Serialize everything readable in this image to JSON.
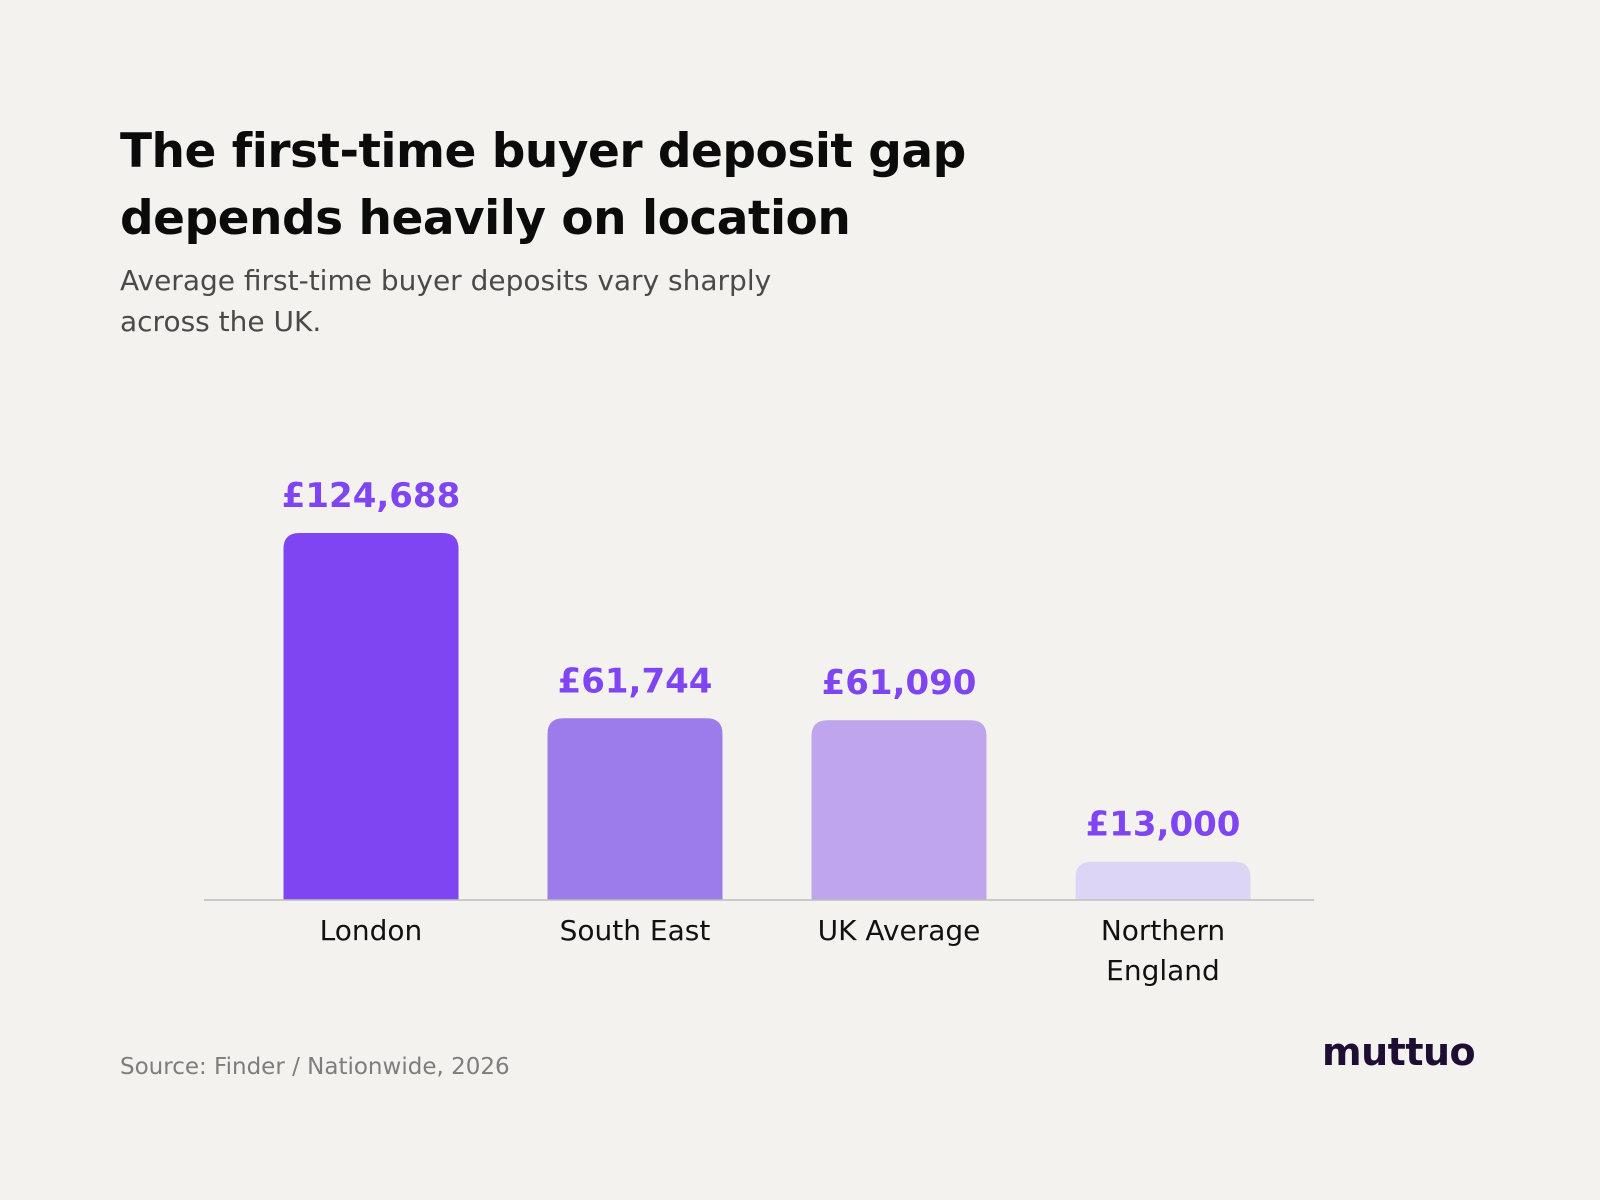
{
  "title": "The first-time buyer deposit gap depends heavily on location",
  "subtitle": "Average first-time buyer deposits vary sharply across the UK.",
  "source": "Source: Finder / Nationwide, 2026",
  "logo": "muttuo",
  "chart_data": {
    "type": "bar",
    "categories": [
      "London",
      "South East",
      "UK Average",
      "Northern England"
    ],
    "values": [
      124688,
      61744,
      61090,
      13000
    ],
    "labels": [
      "£124,688",
      "£61,744",
      "£61,090",
      "£13,000"
    ],
    "ylim": [
      0,
      124688
    ],
    "grid": false,
    "colors": [
      "#7f45f2",
      "#9c7beb",
      "#bfa6ec",
      "#ddd5f5"
    ],
    "label_color": "#7f45f2",
    "axis_color": "#bdbdbd",
    "category_color": "#111111"
  }
}
